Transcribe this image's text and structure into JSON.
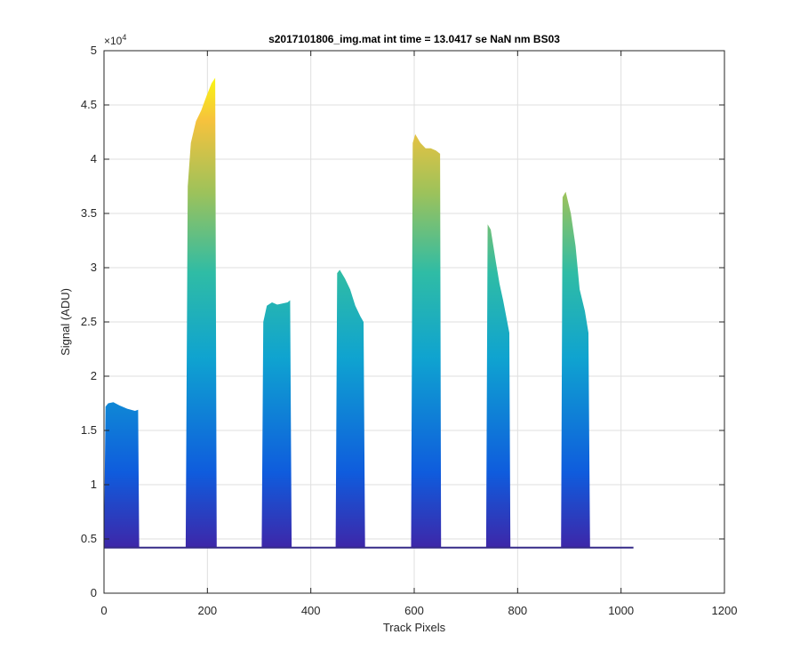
{
  "chart_data": {
    "type": "area",
    "title": "s2017101806_img.mat int time = 13.0417 se  NaN nm BS03",
    "xlabel": "Track Pixels",
    "ylabel": "Signal (ADU)",
    "xlim": [
      0,
      1200
    ],
    "ylim": [
      0,
      50000
    ],
    "x_ticks": [
      0,
      200,
      400,
      600,
      800,
      1000,
      1200
    ],
    "x_tick_labels": [
      "0",
      "200",
      "400",
      "600",
      "800",
      "1000",
      "1200"
    ],
    "y_ticks": [
      0,
      5000,
      10000,
      15000,
      20000,
      25000,
      30000,
      35000,
      40000,
      45000,
      50000
    ],
    "y_tick_labels": [
      "0",
      "0.5",
      "1",
      "1.5",
      "2",
      "2.5",
      "3",
      "3.5",
      "4",
      "4.5",
      "5"
    ],
    "y_exponent_label": "×10",
    "y_exponent_power": "4",
    "grid": true,
    "colormap": [
      "#3e26a8",
      "#0f5cdd",
      "#0fa3d0",
      "#2fbca5",
      "#9ec25a",
      "#f6c23d",
      "#f9fb0e"
    ],
    "baseline": 4200,
    "x_max_data": 1024,
    "bands": [
      {
        "x": [
          0,
          3,
          8,
          18,
          30,
          45,
          60,
          66,
          68
        ],
        "y": [
          4200,
          17200,
          17500,
          17600,
          17300,
          17000,
          16800,
          16900,
          4200
        ]
      },
      {
        "x": [
          158,
          162,
          168,
          178,
          188,
          198,
          208,
          215,
          218
        ],
        "y": [
          4200,
          37500,
          41500,
          43500,
          44500,
          45800,
          47000,
          47500,
          4200
        ]
      },
      {
        "x": [
          305,
          308,
          315,
          325,
          335,
          345,
          355,
          360,
          363
        ],
        "y": [
          4200,
          25000,
          26500,
          26800,
          26600,
          26700,
          26800,
          27000,
          4200
        ]
      },
      {
        "x": [
          448,
          451,
          456,
          466,
          476,
          486,
          496,
          502,
          505
        ],
        "y": [
          4200,
          29500,
          29800,
          29000,
          28000,
          26500,
          25500,
          25000,
          4200
        ]
      },
      {
        "x": [
          594,
          597,
          602,
          612,
          622,
          632,
          642,
          650,
          652
        ],
        "y": [
          4200,
          41500,
          42300,
          41500,
          41000,
          41000,
          40800,
          40500,
          4200
        ]
      },
      {
        "x": [
          739,
          742,
          748,
          758,
          765,
          772,
          778,
          784,
          786
        ],
        "y": [
          4200,
          34000,
          33500,
          30500,
          28500,
          27000,
          25500,
          24000,
          4200
        ]
      },
      {
        "x": [
          884,
          887,
          893,
          903,
          912,
          920,
          930,
          937,
          940
        ],
        "y": [
          4200,
          36500,
          37000,
          35000,
          32000,
          28000,
          26000,
          24000,
          4200
        ]
      }
    ]
  }
}
